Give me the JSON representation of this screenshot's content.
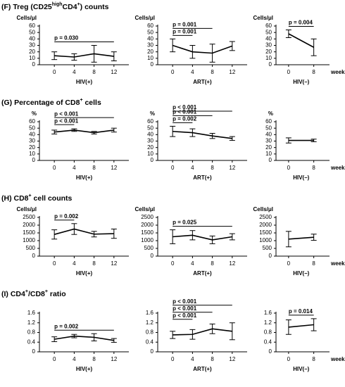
{
  "chart_data": [
    {
      "type": "line",
      "title": [
        {
          "text": "(F) Treg (CD25"
        },
        {
          "text": "high",
          "sup": true
        },
        {
          "text": "CD4"
        },
        {
          "text": "+",
          "sup": true
        },
        {
          "text": ") counts"
        }
      ],
      "ylabel": "Cells/μl",
      "xlabel": "HIV(+)",
      "x": [
        0,
        4,
        8,
        12
      ],
      "xlim": [
        -3,
        15
      ],
      "xticks": [
        0,
        4,
        8,
        12
      ],
      "ylim": [
        0,
        60
      ],
      "yticks": [
        0,
        10,
        20,
        30,
        40,
        50,
        60
      ],
      "series": [
        {
          "color": "#000000",
          "values": [
            14,
            12,
            17,
            13
          ],
          "errors": [
            6,
            5,
            13,
            7
          ]
        }
      ],
      "brackets": [
        {
          "label": "p = 0.030",
          "from": 0,
          "to": 12
        }
      ]
    },
    {
      "type": "line",
      "ylabel": "Cells/μl",
      "xlabel": "ART(+)",
      "x": [
        0,
        4,
        8,
        12
      ],
      "xlim": [
        -3,
        15
      ],
      "xticks": [
        0,
        4,
        8,
        12
      ],
      "ylim": [
        0,
        60
      ],
      "yticks": [
        0,
        10,
        20,
        30,
        40,
        50,
        60
      ],
      "series": [
        {
          "color": "#000000",
          "values": [
            30,
            20,
            18,
            29
          ],
          "errors": [
            10,
            10,
            14,
            7
          ]
        }
      ],
      "brackets": [
        {
          "label": "p = 0.001",
          "from": 0,
          "to": 4
        },
        {
          "label": "p = 0.001",
          "from": 0,
          "to": 8
        }
      ]
    },
    {
      "type": "line",
      "ylabel": "Cells/μl",
      "xlabel": "HIV(–)",
      "xunit": "week",
      "x": [
        0,
        8
      ],
      "xlim": [
        -4,
        13
      ],
      "xticks": [
        0,
        8
      ],
      "ylim": [
        0,
        60
      ],
      "yticks": [
        0,
        10,
        20,
        30,
        40,
        50,
        60
      ],
      "series": [
        {
          "color": "#000000",
          "values": [
            48,
            27
          ],
          "errors": [
            6,
            13
          ]
        }
      ],
      "brackets": [
        {
          "label": "p = 0.004",
          "from": 0,
          "to": 8
        }
      ]
    },
    {
      "type": "line",
      "title": [
        {
          "text": "(G) Percentage of CD8"
        },
        {
          "text": "+",
          "sup": true
        },
        {
          "text": " cells"
        }
      ],
      "ylabel": "%",
      "xlabel": "HIV(+)",
      "x": [
        0,
        4,
        8,
        12
      ],
      "xlim": [
        -3,
        15
      ],
      "xticks": [
        0,
        4,
        8,
        12
      ],
      "ylim": [
        0,
        60
      ],
      "yticks": [
        0,
        10,
        20,
        30,
        40,
        50,
        60
      ],
      "series": [
        {
          "color": "#000000",
          "values": [
            44,
            47,
            43,
            47
          ],
          "errors": [
            3,
            2,
            2,
            3
          ]
        }
      ],
      "brackets": [
        {
          "label": "p < 0.001",
          "from": 0,
          "to": 4
        },
        {
          "label": "p < 0.001",
          "from": 0,
          "to": 12
        }
      ]
    },
    {
      "type": "line",
      "ylabel": "%",
      "xlabel": "ART(+)",
      "x": [
        0,
        4,
        8,
        12
      ],
      "xlim": [
        -3,
        15
      ],
      "xticks": [
        0,
        4,
        8,
        12
      ],
      "ylim": [
        0,
        60
      ],
      "yticks": [
        0,
        10,
        20,
        30,
        40,
        50,
        60
      ],
      "series": [
        {
          "color": "#000000",
          "values": [
            45,
            43,
            38,
            34
          ],
          "errors": [
            8,
            6,
            4,
            3
          ]
        }
      ],
      "brackets": [
        {
          "label": "p = 0.002",
          "from": 0,
          "to": 4
        },
        {
          "label": "p < 0.001",
          "from": 0,
          "to": 8
        },
        {
          "label": "p < 0.001",
          "from": 0,
          "to": 12
        }
      ]
    },
    {
      "type": "line",
      "ylabel": "%",
      "xlabel": "HIV(–)",
      "xunit": "week",
      "x": [
        0,
        8
      ],
      "xlim": [
        -4,
        13
      ],
      "xticks": [
        0,
        8
      ],
      "ylim": [
        0,
        60
      ],
      "yticks": [
        0,
        10,
        20,
        30,
        40,
        50,
        60
      ],
      "series": [
        {
          "color": "#000000",
          "values": [
            31,
            31
          ],
          "errors": [
            4,
            2
          ]
        }
      ],
      "brackets": []
    },
    {
      "type": "line",
      "title": [
        {
          "text": "(H) CD8"
        },
        {
          "text": "+",
          "sup": true
        },
        {
          "text": " cell counts"
        }
      ],
      "ylabel": "Cells/μl",
      "xlabel": "HIV(+)",
      "x": [
        0,
        4,
        8,
        12
      ],
      "xlim": [
        -3,
        15
      ],
      "xticks": [
        0,
        4,
        8,
        12
      ],
      "ylim": [
        0,
        2500
      ],
      "yticks": [
        0,
        500,
        1000,
        1500,
        2000,
        2500
      ],
      "series": [
        {
          "color": "#000000",
          "values": [
            1400,
            1750,
            1420,
            1450
          ],
          "errors": [
            300,
            350,
            180,
            300
          ]
        }
      ],
      "brackets": [
        {
          "label": "p = 0.002",
          "from": 0,
          "to": 4
        }
      ]
    },
    {
      "type": "line",
      "ylabel": "Cells/μl",
      "xlabel": "ART(+)",
      "x": [
        0,
        4,
        8,
        12
      ],
      "xlim": [
        -3,
        15
      ],
      "xticks": [
        0,
        4,
        8,
        12
      ],
      "ylim": [
        0,
        2500
      ],
      "yticks": [
        0,
        500,
        1000,
        1500,
        2000,
        2500
      ],
      "series": [
        {
          "color": "#000000",
          "values": [
            1250,
            1350,
            1050,
            1250
          ],
          "errors": [
            450,
            300,
            250,
            200
          ]
        }
      ],
      "brackets": [
        {
          "label": "p = 0.025",
          "from": 0,
          "to": 12
        }
      ]
    },
    {
      "type": "line",
      "ylabel": "Cells/μl",
      "xlabel": "HIV(–)",
      "xunit": "week",
      "x": [
        0,
        8
      ],
      "xlim": [
        -4,
        13
      ],
      "xticks": [
        0,
        8
      ],
      "ylim": [
        0,
        2500
      ],
      "yticks": [
        0,
        500,
        1000,
        1500,
        2000,
        2500
      ],
      "series": [
        {
          "color": "#000000",
          "values": [
            1100,
            1220
          ],
          "errors": [
            500,
            200
          ]
        }
      ],
      "brackets": []
    },
    {
      "type": "line",
      "title": [
        {
          "text": "(I) CD4"
        },
        {
          "text": "+",
          "sup": true
        },
        {
          "text": "/CD8"
        },
        {
          "text": "+",
          "sup": true
        },
        {
          "text": " ratio"
        }
      ],
      "xlabel": "HIV(+)",
      "x": [
        0,
        4,
        8,
        12
      ],
      "xlim": [
        -3,
        15
      ],
      "xticks": [
        0,
        4,
        8,
        12
      ],
      "ylim": [
        0,
        1.6
      ],
      "yticks": [
        0,
        0.4,
        0.8,
        1.2,
        1.6
      ],
      "series": [
        {
          "color": "#000000",
          "values": [
            0.52,
            0.65,
            0.6,
            0.47
          ],
          "errors": [
            0.1,
            0.07,
            0.15,
            0.08
          ]
        }
      ],
      "brackets": [
        {
          "label": "p = 0.002",
          "from": 0,
          "to": 12
        }
      ]
    },
    {
      "type": "line",
      "xlabel": "ART(+)",
      "x": [
        0,
        4,
        8,
        12
      ],
      "xlim": [
        -3,
        15
      ],
      "xticks": [
        0,
        4,
        8,
        12
      ],
      "ylim": [
        0,
        1.6
      ],
      "yticks": [
        0,
        0.4,
        0.8,
        1.2,
        1.6
      ],
      "series": [
        {
          "color": "#000000",
          "values": [
            0.7,
            0.72,
            0.95,
            0.85
          ],
          "errors": [
            0.15,
            0.2,
            0.2,
            0.35
          ]
        }
      ],
      "brackets": [
        {
          "label": "p < 0.001",
          "from": 0,
          "to": 4
        },
        {
          "label": "p < 0.001",
          "from": 0,
          "to": 8
        },
        {
          "label": "p < 0.001",
          "from": 0,
          "to": 12
        }
      ]
    },
    {
      "type": "line",
      "xlabel": "HIV(–)",
      "xunit": "week",
      "x": [
        0,
        8
      ],
      "xlim": [
        -4,
        13
      ],
      "xticks": [
        0,
        8
      ],
      "ylim": [
        0,
        1.6
      ],
      "yticks": [
        0,
        0.4,
        0.8,
        1.2,
        1.6
      ],
      "series": [
        {
          "color": "#000000",
          "values": [
            1.02,
            1.12
          ],
          "errors": [
            0.3,
            0.25
          ]
        }
      ],
      "brackets": [
        {
          "label": "p = 0.014",
          "from": 0,
          "to": 8
        }
      ]
    }
  ]
}
